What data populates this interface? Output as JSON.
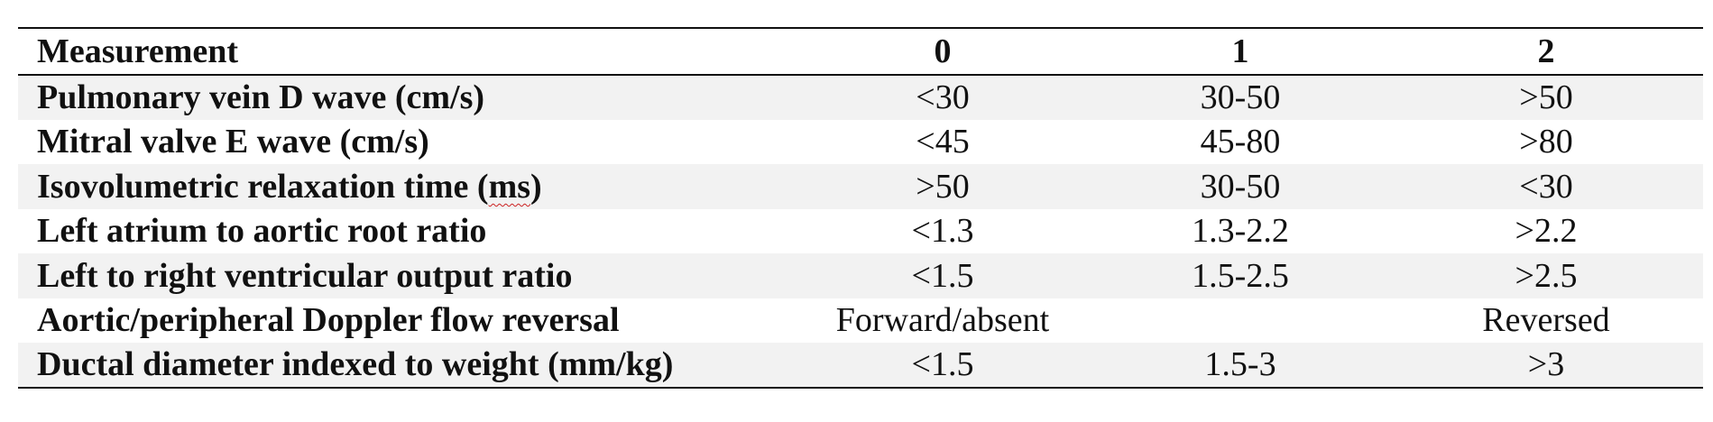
{
  "table": {
    "headers": [
      "Measurement",
      "0",
      "1",
      "2"
    ],
    "rows": [
      {
        "label_before": "",
        "label_flagged": "",
        "label_after": "",
        "label": "Pulmonary vein D wave (cm/s)",
        "values": [
          "<30",
          "30-50",
          ">50"
        ]
      },
      {
        "label": "Mitral valve E wave (cm/s)",
        "values": [
          "<45",
          "45-80",
          ">80"
        ]
      },
      {
        "label_before": "Isovolumetric relaxation time (",
        "label_flagged": "ms",
        "label_after": ")",
        "values": [
          ">50",
          "30-50",
          "<30"
        ]
      },
      {
        "label": "Left atrium to aortic root ratio",
        "values": [
          "<1.3",
          "1.3-2.2",
          ">2.2"
        ]
      },
      {
        "label": "Left to right ventricular output ratio",
        "values": [
          "<1.5",
          "1.5-2.5",
          ">2.5"
        ]
      },
      {
        "label": "Aortic/peripheral Doppler flow reversal",
        "values": [
          "Forward/absent",
          "",
          "Reversed"
        ]
      },
      {
        "label": "Ductal diameter indexed to weight (mm/kg)",
        "values": [
          "<1.5",
          "1.5-3",
          ">3"
        ]
      }
    ]
  }
}
